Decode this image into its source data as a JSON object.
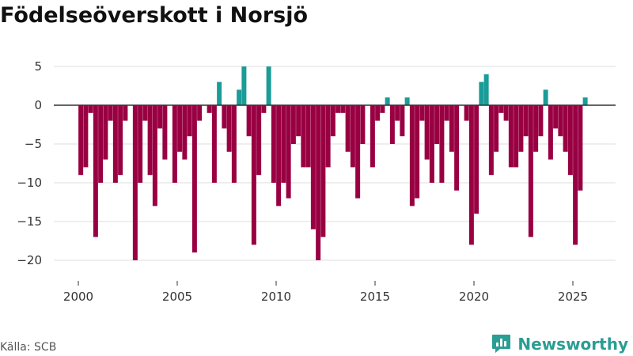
{
  "title": "Födelseöverskott i Norsjö",
  "source": "Källa: SCB",
  "brand": {
    "name": "Newsworthy",
    "icon": "newsworthy-chart-bubble-icon"
  },
  "colors": {
    "negative": "#990042",
    "positive": "#1a9c98",
    "grid": "#dddddd",
    "zero_line": "#333333"
  },
  "chart_data": {
    "type": "bar",
    "title": "Födelseöverskott i Norsjö",
    "xlabel": "",
    "ylabel": "",
    "x_ticks": [
      2000,
      2005,
      2010,
      2015,
      2020,
      2025
    ],
    "y_ticks": [
      5,
      0,
      -5,
      -10,
      -15,
      -20
    ],
    "ylim": [
      -21,
      6
    ],
    "xlim": [
      1999.5,
      2026.2
    ],
    "grid": true,
    "legend": "none",
    "x": [
      2000.125,
      2000.375,
      2000.625,
      2000.875,
      2001.125,
      2001.375,
      2001.625,
      2001.875,
      2002.125,
      2002.375,
      2002.625,
      2002.875,
      2003.125,
      2003.375,
      2003.625,
      2003.875,
      2004.125,
      2004.375,
      2004.625,
      2004.875,
      2005.125,
      2005.375,
      2005.625,
      2005.875,
      2006.125,
      2006.375,
      2006.625,
      2006.875,
      2007.125,
      2007.375,
      2007.625,
      2007.875,
      2008.125,
      2008.375,
      2008.625,
      2008.875,
      2009.125,
      2009.375,
      2009.625,
      2009.875,
      2010.125,
      2010.375,
      2010.625,
      2010.875,
      2011.125,
      2011.375,
      2011.625,
      2011.875,
      2012.125,
      2012.375,
      2012.625,
      2012.875,
      2013.125,
      2013.375,
      2013.625,
      2013.875,
      2014.125,
      2014.375,
      2014.625,
      2014.875,
      2015.125,
      2015.375,
      2015.625,
      2015.875,
      2016.125,
      2016.375,
      2016.625,
      2016.875,
      2017.125,
      2017.375,
      2017.625,
      2017.875,
      2018.125,
      2018.375,
      2018.625,
      2018.875,
      2019.125,
      2019.375,
      2019.625,
      2019.875,
      2020.125,
      2020.375,
      2020.625,
      2020.875,
      2021.125,
      2021.375,
      2021.625,
      2021.875,
      2022.125,
      2022.375,
      2022.625,
      2022.875,
      2023.125,
      2023.375,
      2023.625,
      2023.875,
      2024.125,
      2024.375,
      2024.625,
      2024.875,
      2025.125,
      2025.375,
      2025.625
    ],
    "values": [
      -9,
      -8,
      -1,
      -17,
      -10,
      -7,
      -2,
      -10,
      -9,
      -2,
      0,
      -20,
      -10,
      -2,
      -9,
      -13,
      -3,
      -7,
      0,
      -10,
      -6,
      -7,
      -4,
      -19,
      -2,
      0,
      -1,
      -10,
      3,
      -3,
      -6,
      -10,
      2,
      5,
      -4,
      -18,
      -9,
      -1,
      5,
      -10,
      -13,
      -10,
      -12,
      -5,
      -4,
      -8,
      -8,
      -16,
      -20,
      -17,
      -8,
      -4,
      -1,
      -1,
      -6,
      -8,
      -12,
      -5,
      0,
      -8,
      -2,
      -1,
      1,
      -5,
      -2,
      -4,
      1,
      -13,
      -12,
      -2,
      -7,
      -10,
      -5,
      -10,
      -2,
      -6,
      -11,
      0,
      -2,
      -18,
      -14,
      3,
      4,
      -9,
      -6,
      -1,
      -2,
      -8,
      -8,
      -6,
      -4,
      -17,
      -6,
      -4,
      2,
      -7,
      -3,
      -4,
      -6,
      -9,
      -18,
      -11,
      1
    ]
  }
}
